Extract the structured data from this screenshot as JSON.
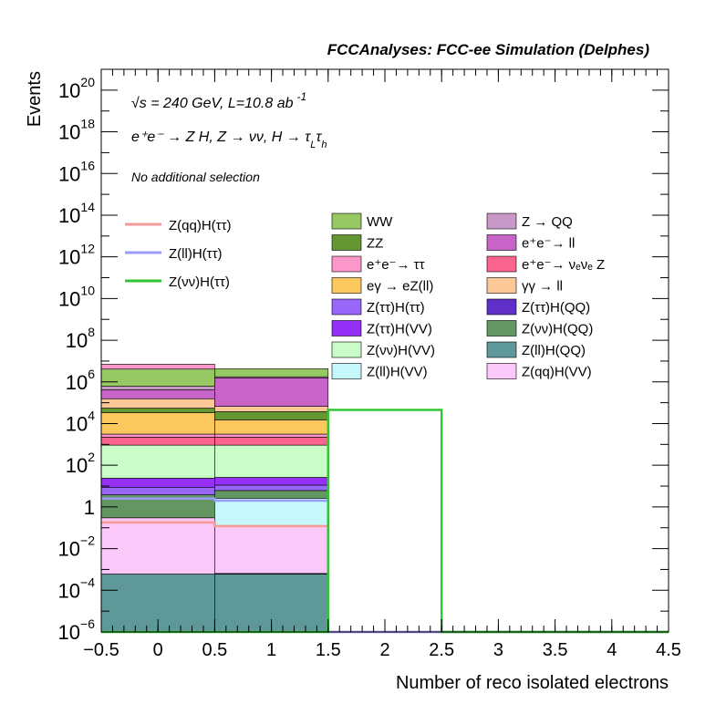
{
  "header": {
    "title": "FCCAnalyses: FCC-ee Simulation (Delphes)"
  },
  "annotations": {
    "energy": "√s = 240 GeV, L=10.8 ab",
    "energy_sup": "-1",
    "process": "e⁺e⁻ → Z H, Z → νν, H → τ",
    "process_sub1": "L",
    "process_tau": "τ",
    "process_sub2": "h",
    "selection": "No additional selection"
  },
  "chart_data": {
    "type": "bar",
    "stacked": true,
    "log_y": true,
    "xlabel": "Number of reco isolated electrons",
    "ylabel": "Events",
    "xlim": [
      -0.5,
      4.5
    ],
    "ylim": [
      1e-06,
      1e+21
    ],
    "x_ticks": [
      "−0.5",
      "0",
      "0.5",
      "1",
      "1.5",
      "2",
      "2.5",
      "3",
      "3.5",
      "4",
      "4.5"
    ],
    "y_ticks": [
      {
        "base": "10",
        "exp": "−6",
        "value": 1e-06
      },
      {
        "base": "10",
        "exp": "−4",
        "value": 0.0001
      },
      {
        "base": "10",
        "exp": "−2",
        "value": 0.01
      },
      {
        "base": "1",
        "exp": "",
        "value": 1
      },
      {
        "base": "10",
        "exp": "2",
        "value": 100.0
      },
      {
        "base": "10",
        "exp": "4",
        "value": 10000.0
      },
      {
        "base": "10",
        "exp": "6",
        "value": 1000000.0
      },
      {
        "base": "10",
        "exp": "8",
        "value": 100000000.0
      },
      {
        "base": "10",
        "exp": "10",
        "value": 10000000000.0
      },
      {
        "base": "10",
        "exp": "12",
        "value": 1000000000000.0
      },
      {
        "base": "10",
        "exp": "14",
        "value": 100000000000000.0
      },
      {
        "base": "10",
        "exp": "16",
        "value": 1e+16
      },
      {
        "base": "10",
        "exp": "18",
        "value": 1e+18
      },
      {
        "base": "10",
        "exp": "20",
        "value": 1e+20
      }
    ],
    "bins": [
      [
        -0.5,
        0.5
      ],
      [
        0.5,
        1.5
      ]
    ],
    "stack": [
      {
        "name": "Z(ll)H(QQ)",
        "color": "#5f9898",
        "values": [
          0.0006,
          0.0006
        ]
      },
      {
        "name": "Z(ττ)H(QQ)",
        "color": "#6130cb",
        "values": [
          0,
          4e-05
        ]
      },
      {
        "name": "Z(qq)H(VV)",
        "color": "#fcc8f9",
        "values": [
          0.3,
          0.12
        ]
      },
      {
        "name": "Z(ll)H(VV)",
        "color": "#c6f8fb",
        "values": [
          0,
          2.5
        ]
      },
      {
        "name": "Z(νν)H(QQ)",
        "color": "#639660",
        "values": [
          3.5,
          3.5
        ]
      },
      {
        "name": "Z(ττ)H(ττ)",
        "color": "#9966fa",
        "values": [
          5,
          5
        ]
      },
      {
        "name": "Z(ττ)H(VV)",
        "color": "#9630f9",
        "values": [
          15,
          15
        ]
      },
      {
        "name": "Z(νν)H(VV)",
        "color": "#c9fcc7",
        "values": [
          900,
          900
        ]
      },
      {
        "name": "e⁺e⁻ → νₑνₑ Z",
        "color": "#fc6490",
        "values": [
          1300,
          1300
        ]
      },
      {
        "name": "e⁺e⁻ → ττ",
        "color": "#fc98c9",
        "values": [
          900,
          900
        ]
      },
      {
        "name": "eγ → eZ(ll)",
        "color": "#fcc85e",
        "values": [
          30000,
          12000
        ]
      },
      {
        "name": "ZZ",
        "color": "#649632",
        "values": [
          22000,
          22000
        ]
      },
      {
        "name": "γγ → ll",
        "color": "#fcc898",
        "values": [
          100000,
          30000
        ]
      },
      {
        "name": "e⁺e⁻ → ll",
        "color": "#c864c8",
        "values": [
          260000,
          1500000
        ]
      },
      {
        "name": "Z → QQ",
        "color": "#c898c8",
        "values": [
          200000,
          200000
        ]
      },
      {
        "name": "WW",
        "color": "#98c864",
        "values": [
          3500000,
          2500000
        ]
      },
      {
        "name": "WW",
        "color": "#fc98c9",
        "values": [
          3000000,
          0
        ]
      }
    ],
    "signal_lines": [
      {
        "name": "Z(qq)H(ττ)",
        "color": "#f59a98",
        "values": [
          0.18,
          0.12,
          0,
          0,
          0
        ]
      },
      {
        "name": "Z(ll)H(ττ)",
        "color": "#9a9af8",
        "values": [
          2.5,
          2.0,
          0,
          0,
          0
        ]
      },
      {
        "name": "Z(νν)H(ττ)",
        "color": "#33c633",
        "values": [
          1e-06,
          1e-06,
          45000.0,
          1e-06,
          1e-06
        ]
      }
    ],
    "signal_bins": [
      [
        -0.5,
        0.5
      ],
      [
        0.5,
        1.5
      ],
      [
        1.5,
        2.5
      ],
      [
        2.5,
        3.5
      ],
      [
        3.5,
        4.5
      ]
    ],
    "legend": {
      "lines": [
        {
          "label": "Z(qq)H(ττ)",
          "color": "#f59a98"
        },
        {
          "label": "Z(ll)H(ττ)",
          "color": "#9a9af8"
        },
        {
          "label": "Z(νν)H(ττ)",
          "color": "#33c633"
        }
      ],
      "col1": [
        {
          "label": "WW",
          "color": "#98c864"
        },
        {
          "label": "ZZ",
          "color": "#649632"
        },
        {
          "label": "e⁺e⁻→ ττ",
          "color": "#fc98c9"
        },
        {
          "label": "eγ → eZ(ll)",
          "color": "#fcc85e"
        },
        {
          "label": "Z(ττ)H(ττ)",
          "color": "#9966fa"
        },
        {
          "label": "Z(ττ)H(VV)",
          "color": "#9630f9"
        },
        {
          "label": "Z(νν)H(VV)",
          "color": "#c9fcc7"
        },
        {
          "label": "Z(ll)H(VV)",
          "color": "#c6f8fb"
        }
      ],
      "col2": [
        {
          "label": "Z → QQ",
          "color": "#c898c8"
        },
        {
          "label": "e⁺e⁻→ ll",
          "color": "#c864c8"
        },
        {
          "label": "e⁺e⁻→ νₑνₑ Z",
          "color": "#fc6490"
        },
        {
          "label": "γγ → ll",
          "color": "#fcc898"
        },
        {
          "label": "Z(ττ)H(QQ)",
          "color": "#6130cb"
        },
        {
          "label": "Z(νν)H(QQ)",
          "color": "#639660"
        },
        {
          "label": "Z(ll)H(QQ)",
          "color": "#5f9898"
        },
        {
          "label": "Z(qq)H(VV)",
          "color": "#fcc8f9"
        }
      ]
    }
  }
}
